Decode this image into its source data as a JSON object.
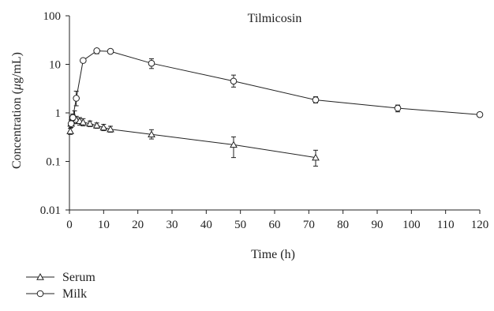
{
  "chart_data": {
    "type": "line",
    "title": "Tilmicosin",
    "xlabel": "Time (h)",
    "ylabel_parts": [
      "Concentration (",
      "μ",
      "g/mL)"
    ],
    "x_scale": "linear",
    "y_scale": "log",
    "xlim": [
      0,
      120
    ],
    "ylim": [
      0.01,
      100
    ],
    "x_ticks": [
      0,
      10,
      20,
      30,
      40,
      50,
      60,
      70,
      80,
      90,
      100,
      110,
      120
    ],
    "y_ticks": [
      {
        "value": 0.01,
        "label": "0.01"
      },
      {
        "value": 0.1,
        "label": "0.1"
      },
      {
        "value": 1,
        "label": "1"
      },
      {
        "value": 10,
        "label": "10"
      },
      {
        "value": 100,
        "label": "100"
      }
    ],
    "grid": false,
    "legend_position": "bottom-left",
    "series": [
      {
        "name": "Serum",
        "marker": "triangle",
        "x": [
          0.25,
          0.5,
          1,
          1.5,
          2,
          3,
          4,
          6,
          8,
          10,
          12,
          24,
          48,
          72
        ],
        "y": [
          0.42,
          0.6,
          0.75,
          0.8,
          0.72,
          0.68,
          0.64,
          0.6,
          0.55,
          0.5,
          0.46,
          0.36,
          0.22,
          0.12
        ],
        "err_low": [
          0.36,
          0.5,
          0.6,
          0.6,
          0.6,
          0.56,
          0.54,
          0.52,
          0.48,
          0.43,
          0.4,
          0.29,
          0.12,
          0.08
        ],
        "err_high": [
          0.48,
          0.72,
          0.95,
          1.1,
          0.85,
          0.8,
          0.76,
          0.68,
          0.62,
          0.58,
          0.53,
          0.45,
          0.32,
          0.17
        ]
      },
      {
        "name": "Milk",
        "marker": "circle",
        "x": [
          0.5,
          1,
          2,
          4,
          8,
          12,
          24,
          48,
          72,
          96,
          120
        ],
        "y": [
          0.6,
          0.8,
          2,
          12,
          19,
          18.5,
          10.5,
          4.5,
          1.85,
          1.25,
          0.92
        ],
        "err_low": [
          0.55,
          0.7,
          1.4,
          11,
          16.5,
          17.5,
          8.2,
          3.4,
          1.6,
          1.05,
          0.88
        ],
        "err_high": [
          0.66,
          0.9,
          2.8,
          13,
          21,
          19.5,
          13,
          6,
          2.15,
          1.45,
          0.97
        ]
      }
    ]
  }
}
